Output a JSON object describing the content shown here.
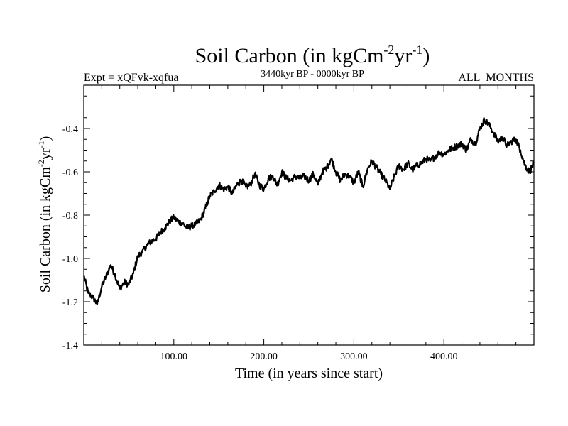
{
  "chart_data": {
    "type": "line",
    "title": "Soil Carbon (in kgCm",
    "title_sup1": "-2",
    "title_mid": "yr",
    "title_sup2": "-1",
    "title_end": ")",
    "subtitle_left": "Expt = xQFvk-xqfua",
    "subtitle_center": "3440kyr BP - 0000kyr BP",
    "subtitle_right": "ALL_MONTHS",
    "xlabel": "Time (in years since start)",
    "ylabel_base": "Soil Carbon (in kgCm",
    "ylabel_sup1": "-2",
    "ylabel_mid": "yr",
    "ylabel_sup2": "-1",
    "ylabel_end": ")",
    "xlim": [
      0,
      500
    ],
    "ylim": [
      -1.4,
      -0.2
    ],
    "xticks": [
      100,
      200,
      300,
      400
    ],
    "xtick_labels": [
      "100.00",
      "200.00",
      "300.00",
      "400.00"
    ],
    "yticks": [
      -1.4,
      -1.2,
      -1.0,
      -0.8,
      -0.6,
      -0.4
    ],
    "ytick_labels": [
      "-1.4",
      "-1.2",
      "-1.0",
      "-0.8",
      "-0.6",
      "-0.4"
    ],
    "grid": false,
    "series": [
      {
        "name": "Soil Carbon",
        "x": [
          0,
          5,
          10,
          15,
          20,
          25,
          30,
          35,
          40,
          45,
          50,
          55,
          60,
          65,
          70,
          75,
          80,
          85,
          90,
          95,
          100,
          105,
          110,
          115,
          120,
          125,
          130,
          135,
          140,
          145,
          150,
          155,
          160,
          165,
          170,
          175,
          180,
          185,
          190,
          195,
          200,
          205,
          210,
          215,
          220,
          225,
          230,
          235,
          240,
          245,
          250,
          255,
          260,
          265,
          270,
          275,
          280,
          285,
          290,
          295,
          300,
          305,
          310,
          315,
          320,
          325,
          330,
          335,
          340,
          345,
          350,
          355,
          360,
          365,
          370,
          375,
          380,
          385,
          390,
          395,
          400,
          405,
          410,
          415,
          420,
          425,
          430,
          435,
          440,
          445,
          450,
          455,
          460,
          465,
          470,
          475,
          480,
          485,
          490,
          495,
          500
        ],
        "values": [
          -1.08,
          -1.16,
          -1.18,
          -1.21,
          -1.13,
          -1.08,
          -1.03,
          -1.08,
          -1.14,
          -1.11,
          -1.12,
          -1.07,
          -0.99,
          -0.97,
          -0.94,
          -0.92,
          -0.91,
          -0.88,
          -0.86,
          -0.83,
          -0.81,
          -0.83,
          -0.84,
          -0.86,
          -0.85,
          -0.84,
          -0.82,
          -0.77,
          -0.71,
          -0.69,
          -0.66,
          -0.68,
          -0.67,
          -0.7,
          -0.66,
          -0.64,
          -0.67,
          -0.66,
          -0.61,
          -0.66,
          -0.68,
          -0.63,
          -0.62,
          -0.66,
          -0.6,
          -0.63,
          -0.64,
          -0.62,
          -0.63,
          -0.62,
          -0.64,
          -0.61,
          -0.66,
          -0.6,
          -0.58,
          -0.54,
          -0.6,
          -0.64,
          -0.61,
          -0.62,
          -0.65,
          -0.6,
          -0.67,
          -0.59,
          -0.55,
          -0.58,
          -0.61,
          -0.64,
          -0.68,
          -0.62,
          -0.57,
          -0.59,
          -0.56,
          -0.59,
          -0.57,
          -0.56,
          -0.54,
          -0.55,
          -0.53,
          -0.51,
          -0.52,
          -0.5,
          -0.49,
          -0.48,
          -0.47,
          -0.5,
          -0.45,
          -0.47,
          -0.4,
          -0.36,
          -0.38,
          -0.42,
          -0.46,
          -0.44,
          -0.48,
          -0.46,
          -0.45,
          -0.5,
          -0.57,
          -0.6,
          -0.56
        ]
      }
    ]
  }
}
